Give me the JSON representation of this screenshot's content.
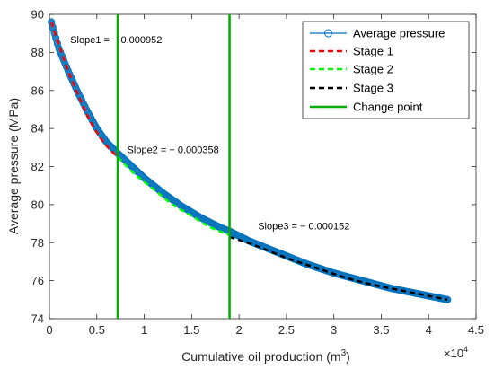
{
  "chart_data": {
    "type": "line",
    "xlabel": "Cumulative oil production (m",
    "xlabel_sup": "3",
    "xlabel_end": ")",
    "x_multiplier_base": "×10",
    "x_multiplier_exp": "4",
    "ylabel": "Average pressure (MPa)",
    "xlim": [
      0,
      4.5
    ],
    "ylim": [
      74,
      90
    ],
    "x_ticks": [
      0,
      0.5,
      1,
      1.5,
      2,
      2.5,
      3,
      3.5,
      4,
      4.5
    ],
    "x_tick_labels": [
      "0",
      "0.5",
      "1",
      "1.5",
      "2",
      "2.5",
      "3",
      "3.5",
      "4",
      "4.5"
    ],
    "y_ticks": [
      74,
      76,
      78,
      80,
      82,
      84,
      86,
      88,
      90
    ],
    "y_tick_labels": [
      "74",
      "76",
      "78",
      "80",
      "82",
      "84",
      "86",
      "88",
      "90"
    ],
    "grid": false,
    "legend_position": "top-right",
    "series": [
      {
        "name": "Average pressure",
        "color": "#0072BD",
        "style": "solid-with-circle-markers",
        "x": [
          0.02,
          0.1,
          0.2,
          0.3,
          0.4,
          0.5,
          0.6,
          0.72,
          0.85,
          1.0,
          1.2,
          1.4,
          1.6,
          1.8,
          1.9,
          2.1,
          2.4,
          2.7,
          3.0,
          3.3,
          3.6,
          3.9,
          4.2
        ],
        "y": [
          89.6,
          88.2,
          87.0,
          85.9,
          84.9,
          84.0,
          83.3,
          82.7,
          82.1,
          81.4,
          80.6,
          79.9,
          79.3,
          78.8,
          78.6,
          78.1,
          77.5,
          76.9,
          76.4,
          76.0,
          75.6,
          75.3,
          75.0
        ]
      },
      {
        "name": "Stage 1",
        "color": "#FF0000",
        "style": "dashed",
        "x": [
          0.02,
          0.1,
          0.2,
          0.3,
          0.4,
          0.5,
          0.6,
          0.72
        ],
        "y": [
          89.6,
          88.4,
          87.0,
          85.8,
          84.7,
          83.8,
          83.1,
          82.5
        ]
      },
      {
        "name": "Stage 2",
        "color": "#00FF00",
        "style": "dashed",
        "x": [
          0.72,
          0.9,
          1.1,
          1.3,
          1.5,
          1.7,
          1.9
        ],
        "y": [
          82.5,
          81.6,
          80.8,
          80.0,
          79.4,
          78.8,
          78.4
        ]
      },
      {
        "name": "Stage 3",
        "color": "#000000",
        "style": "dashed",
        "x": [
          1.9,
          2.2,
          2.5,
          2.8,
          3.1,
          3.4,
          3.7,
          4.0,
          4.2
        ],
        "y": [
          78.3,
          77.8,
          77.2,
          76.7,
          76.2,
          75.8,
          75.5,
          75.2,
          75.0
        ]
      }
    ],
    "change_points": {
      "name": "Change point",
      "color": "#00AA00",
      "x": [
        0.72,
        1.9
      ]
    },
    "annotations": [
      {
        "text": "Slope1 = − 0.000952",
        "x": 0.22,
        "y": 88.5
      },
      {
        "text": "Slope2 = − 0.000358",
        "x": 0.82,
        "y": 82.7
      },
      {
        "text": "Slope3 = − 0.000152",
        "x": 2.2,
        "y": 78.7
      }
    ]
  }
}
